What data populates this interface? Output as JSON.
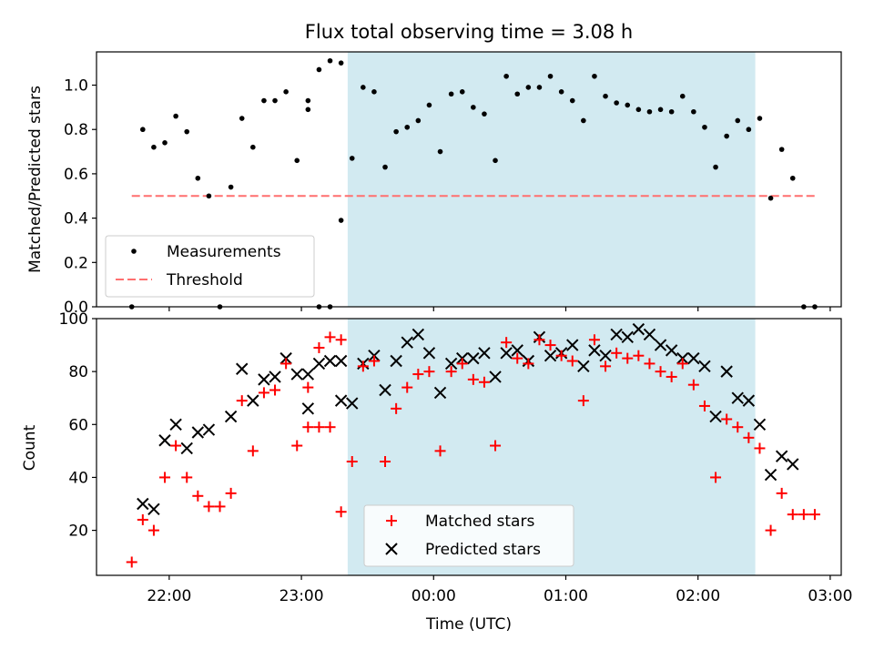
{
  "title": "Flux total observing time = 3.08 h",
  "colors": {
    "span": "#add8e6",
    "threshold": "#ff6f6f",
    "measurements": "#000000",
    "matched": "#ff0000",
    "predicted": "#000000"
  },
  "chart_data": [
    {
      "type": "scatter",
      "panel": "top",
      "ylabel": "Matched/Predicted stars",
      "xlim": [
        "21:27",
        "03:05"
      ],
      "ylim": [
        0,
        1.15
      ],
      "y_ticks": [
        0.0,
        0.2,
        0.4,
        0.6,
        0.8,
        1.0
      ],
      "y_tick_labels": [
        "0.0",
        "0.2",
        "0.4",
        "0.6",
        "0.8",
        "1.0"
      ],
      "x_ticks": [
        "22:00",
        "23:00",
        "00:00",
        "01:00",
        "02:00",
        "03:00"
      ],
      "shaded_span": [
        "23:21",
        "02:26"
      ],
      "legend_position": "lower-left",
      "threshold": {
        "name": "Threshold",
        "y": 0.5,
        "x_from": "21:43",
        "x_to": "02:54"
      },
      "series": [
        {
          "name": "Measurements",
          "marker": "dot",
          "points": [
            [
              "21:43",
              0.0
            ],
            [
              "21:48",
              0.8
            ],
            [
              "21:53",
              0.72
            ],
            [
              "21:58",
              0.74
            ],
            [
              "22:03",
              0.86
            ],
            [
              "22:08",
              0.79
            ],
            [
              "22:13",
              0.58
            ],
            [
              "22:18",
              0.5
            ],
            [
              "22:23",
              0.0
            ],
            [
              "22:28",
              0.54
            ],
            [
              "22:33",
              0.85
            ],
            [
              "22:38",
              0.72
            ],
            [
              "22:43",
              0.93
            ],
            [
              "22:48",
              0.93
            ],
            [
              "22:53",
              0.97
            ],
            [
              "22:58",
              0.66
            ],
            [
              "23:03",
              0.93
            ],
            [
              "23:08",
              1.07
            ],
            [
              "23:13",
              1.11
            ],
            [
              "23:18",
              1.1
            ],
            [
              "23:03",
              0.89
            ],
            [
              "23:08",
              0.0
            ],
            [
              "23:13",
              0.0
            ],
            [
              "23:18",
              0.39
            ],
            [
              "23:23",
              0.67
            ],
            [
              "23:28",
              0.99
            ],
            [
              "23:33",
              0.97
            ],
            [
              "23:38",
              0.63
            ],
            [
              "23:43",
              0.79
            ],
            [
              "23:48",
              0.81
            ],
            [
              "23:53",
              0.84
            ],
            [
              "23:58",
              0.91
            ],
            [
              "00:03",
              0.7
            ],
            [
              "00:08",
              0.96
            ],
            [
              "00:13",
              0.97
            ],
            [
              "00:18",
              0.9
            ],
            [
              "00:23",
              0.87
            ],
            [
              "00:28",
              0.66
            ],
            [
              "00:33",
              1.04
            ],
            [
              "00:38",
              0.96
            ],
            [
              "00:43",
              0.99
            ],
            [
              "00:48",
              0.99
            ],
            [
              "00:53",
              1.04
            ],
            [
              "00:58",
              0.97
            ],
            [
              "01:03",
              0.93
            ],
            [
              "01:08",
              0.84
            ],
            [
              "01:13",
              1.04
            ],
            [
              "01:18",
              0.95
            ],
            [
              "01:23",
              0.92
            ],
            [
              "01:28",
              0.91
            ],
            [
              "01:33",
              0.89
            ],
            [
              "01:38",
              0.88
            ],
            [
              "01:43",
              0.89
            ],
            [
              "01:48",
              0.88
            ],
            [
              "01:53",
              0.95
            ],
            [
              "01:58",
              0.88
            ],
            [
              "02:03",
              0.81
            ],
            [
              "02:08",
              0.63
            ],
            [
              "02:13",
              0.77
            ],
            [
              "02:18",
              0.84
            ],
            [
              "02:23",
              0.8
            ],
            [
              "02:28",
              0.85
            ],
            [
              "02:33",
              0.49
            ],
            [
              "02:38",
              0.71
            ],
            [
              "02:43",
              0.58
            ],
            [
              "02:48",
              0.0
            ],
            [
              "02:53",
              0.0
            ]
          ]
        }
      ]
    },
    {
      "type": "scatter",
      "panel": "bottom",
      "xlabel": "Time (UTC)",
      "ylabel": "Count",
      "xlim": [
        "21:27",
        "03:05"
      ],
      "ylim": [
        3,
        100
      ],
      "y_ticks": [
        20,
        40,
        60,
        80,
        100
      ],
      "y_tick_labels": [
        "20",
        "40",
        "60",
        "80",
        "100"
      ],
      "x_ticks": [
        "22:00",
        "23:00",
        "00:00",
        "01:00",
        "02:00",
        "03:00"
      ],
      "x_tick_labels": [
        "22:00",
        "23:00",
        "00:00",
        "01:00",
        "02:00",
        "03:00"
      ],
      "shaded_span": [
        "23:21",
        "02:26"
      ],
      "legend_position": "lower-center",
      "series": [
        {
          "name": "Matched stars",
          "marker": "plus",
          "points": [
            [
              "21:43",
              8
            ],
            [
              "21:48",
              24
            ],
            [
              "21:53",
              20
            ],
            [
              "21:58",
              40
            ],
            [
              "22:03",
              52
            ],
            [
              "22:08",
              40
            ],
            [
              "22:13",
              33
            ],
            [
              "22:18",
              29
            ],
            [
              "22:23",
              29
            ],
            [
              "22:28",
              34
            ],
            [
              "22:33",
              69
            ],
            [
              "22:38",
              50
            ],
            [
              "22:43",
              72
            ],
            [
              "22:48",
              73
            ],
            [
              "22:53",
              83
            ],
            [
              "22:58",
              52
            ],
            [
              "23:03",
              74
            ],
            [
              "23:08",
              89
            ],
            [
              "23:13",
              93
            ],
            [
              "23:18",
              92
            ],
            [
              "23:03",
              59
            ],
            [
              "23:08",
              59
            ],
            [
              "23:13",
              59
            ],
            [
              "23:18",
              27
            ],
            [
              "23:23",
              46
            ],
            [
              "23:28",
              82
            ],
            [
              "23:33",
              84
            ],
            [
              "23:38",
              46
            ],
            [
              "23:43",
              66
            ],
            [
              "23:48",
              74
            ],
            [
              "23:53",
              79
            ],
            [
              "23:58",
              80
            ],
            [
              "00:03",
              50
            ],
            [
              "00:08",
              80
            ],
            [
              "00:13",
              83
            ],
            [
              "00:18",
              77
            ],
            [
              "00:23",
              76
            ],
            [
              "00:28",
              52
            ],
            [
              "00:33",
              91
            ],
            [
              "00:38",
              85
            ],
            [
              "00:43",
              83
            ],
            [
              "00:48",
              92
            ],
            [
              "00:53",
              90
            ],
            [
              "00:58",
              86
            ],
            [
              "01:03",
              84
            ],
            [
              "01:08",
              69
            ],
            [
              "01:13",
              92
            ],
            [
              "01:18",
              82
            ],
            [
              "01:23",
              87
            ],
            [
              "01:28",
              85
            ],
            [
              "01:33",
              86
            ],
            [
              "01:38",
              83
            ],
            [
              "01:43",
              80
            ],
            [
              "01:48",
              78
            ],
            [
              "01:53",
              83
            ],
            [
              "01:58",
              75
            ],
            [
              "02:03",
              67
            ],
            [
              "02:08",
              40
            ],
            [
              "02:13",
              62
            ],
            [
              "02:18",
              59
            ],
            [
              "02:23",
              55
            ],
            [
              "02:28",
              51
            ],
            [
              "02:33",
              20
            ],
            [
              "02:38",
              34
            ],
            [
              "02:43",
              26
            ],
            [
              "02:48",
              26
            ],
            [
              "02:53",
              26
            ]
          ]
        },
        {
          "name": "Predicted stars",
          "marker": "x",
          "points": [
            [
              "21:48",
              30
            ],
            [
              "21:53",
              28
            ],
            [
              "21:58",
              54
            ],
            [
              "22:03",
              60
            ],
            [
              "22:08",
              51
            ],
            [
              "22:13",
              57
            ],
            [
              "22:18",
              58
            ],
            [
              "22:28",
              63
            ],
            [
              "22:33",
              81
            ],
            [
              "22:38",
              69
            ],
            [
              "22:43",
              77
            ],
            [
              "22:48",
              78
            ],
            [
              "22:53",
              85
            ],
            [
              "22:58",
              79
            ],
            [
              "23:03",
              79
            ],
            [
              "23:08",
              83
            ],
            [
              "23:13",
              84
            ],
            [
              "23:18",
              84
            ],
            [
              "23:03",
              66
            ],
            [
              "23:18",
              69
            ],
            [
              "23:23",
              68
            ],
            [
              "23:28",
              83
            ],
            [
              "23:33",
              86
            ],
            [
              "23:38",
              73
            ],
            [
              "23:43",
              84
            ],
            [
              "23:48",
              91
            ],
            [
              "23:53",
              94
            ],
            [
              "23:58",
              87
            ],
            [
              "00:03",
              72
            ],
            [
              "00:08",
              83
            ],
            [
              "00:13",
              85
            ],
            [
              "00:18",
              85
            ],
            [
              "00:23",
              87
            ],
            [
              "00:28",
              78
            ],
            [
              "00:33",
              87
            ],
            [
              "00:38",
              88
            ],
            [
              "00:43",
              84
            ],
            [
              "00:48",
              93
            ],
            [
              "00:53",
              86
            ],
            [
              "00:58",
              87
            ],
            [
              "01:03",
              90
            ],
            [
              "01:08",
              82
            ],
            [
              "01:13",
              88
            ],
            [
              "01:18",
              86
            ],
            [
              "01:23",
              94
            ],
            [
              "01:28",
              93
            ],
            [
              "01:33",
              96
            ],
            [
              "01:38",
              94
            ],
            [
              "01:43",
              90
            ],
            [
              "01:48",
              88
            ],
            [
              "01:53",
              85
            ],
            [
              "01:58",
              85
            ],
            [
              "02:03",
              82
            ],
            [
              "02:08",
              63
            ],
            [
              "02:13",
              80
            ],
            [
              "02:18",
              70
            ],
            [
              "02:23",
              69
            ],
            [
              "02:28",
              60
            ],
            [
              "02:33",
              41
            ],
            [
              "02:38",
              48
            ],
            [
              "02:43",
              45
            ]
          ]
        }
      ]
    }
  ]
}
